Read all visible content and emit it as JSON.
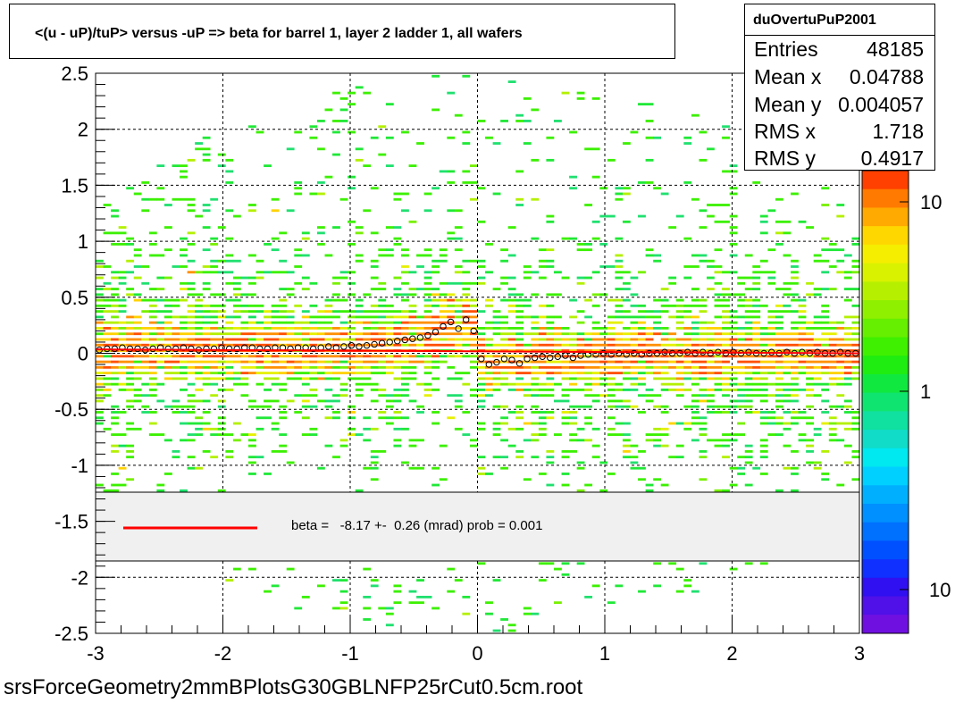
{
  "title": "<(u - uP)/tuP> versus  -uP => beta for barrel 1, layer 2 ladder 1, all wafers",
  "footer": "srsForceGeometry2mmBPlotsG30GBLNFP25rCut0.5cm.root",
  "stats": {
    "name": "duOvertuPuP2001",
    "rows": [
      {
        "label": "Entries",
        "value": "48185"
      },
      {
        "label": "Mean x",
        "value": "0.04788"
      },
      {
        "label": "Mean y",
        "value": "0.004057"
      },
      {
        "label": "RMS x",
        "value": "1.718"
      },
      {
        "label": "RMS y",
        "value": "0.4917"
      }
    ]
  },
  "fit_legend": {
    "text": "beta =   -8.17 +-  0.26 (mrad) prob = 0.001",
    "line_color": "#ff0000"
  },
  "colorbar": {
    "labels": [
      "10",
      "1",
      "10"
    ]
  },
  "chart_data": {
    "type": "heatmap",
    "title": "<(u - uP)/tuP> versus  -uP => beta for barrel 1, layer 2 ladder 1, all wafers",
    "xlim": [
      -3,
      3
    ],
    "ylim": [
      -2.5,
      2.5
    ],
    "x_ticks": [
      -3,
      -2,
      -1,
      0,
      1,
      2,
      3
    ],
    "y_ticks": [
      -2.5,
      -2,
      -1.5,
      -1,
      -0.5,
      0,
      0.5,
      1,
      1.5,
      2,
      2.5
    ],
    "grid": true,
    "profile_points": {
      "x": [
        -2.97,
        -2.91,
        -2.85,
        -2.79,
        -2.73,
        -2.67,
        -2.61,
        -2.55,
        -2.49,
        -2.43,
        -2.37,
        -2.31,
        -2.25,
        -2.19,
        -2.13,
        -2.07,
        -2.01,
        -1.95,
        -1.89,
        -1.83,
        -1.77,
        -1.71,
        -1.65,
        -1.59,
        -1.53,
        -1.47,
        -1.41,
        -1.35,
        -1.29,
        -1.23,
        -1.17,
        -1.11,
        -1.05,
        -0.99,
        -0.93,
        -0.87,
        -0.81,
        -0.75,
        -0.69,
        -0.63,
        -0.57,
        -0.51,
        -0.45,
        -0.39,
        -0.33,
        -0.27,
        -0.21,
        -0.15,
        -0.09,
        -0.03,
        0.03,
        0.09,
        0.15,
        0.21,
        0.27,
        0.33,
        0.39,
        0.45,
        0.51,
        0.57,
        0.63,
        0.69,
        0.75,
        0.81,
        0.87,
        0.93,
        0.99,
        1.05,
        1.11,
        1.17,
        1.23,
        1.29,
        1.35,
        1.41,
        1.47,
        1.53,
        1.59,
        1.65,
        1.71,
        1.77,
        1.83,
        1.89,
        1.95,
        2.01,
        2.07,
        2.13,
        2.19,
        2.25,
        2.31,
        2.37,
        2.43,
        2.49,
        2.55,
        2.61,
        2.67,
        2.73,
        2.79,
        2.85,
        2.91,
        2.97
      ],
      "y": [
        0.03,
        0.04,
        0.04,
        0.05,
        0.04,
        0.04,
        0.03,
        0.04,
        0.05,
        0.04,
        0.04,
        0.05,
        0.04,
        0.03,
        0.04,
        0.04,
        0.05,
        0.04,
        0.04,
        0.05,
        0.05,
        0.04,
        0.04,
        0.05,
        0.05,
        0.04,
        0.05,
        0.05,
        0.04,
        0.05,
        0.06,
        0.05,
        0.06,
        0.07,
        0.06,
        0.07,
        0.08,
        0.09,
        0.1,
        0.11,
        0.12,
        0.13,
        0.14,
        0.16,
        0.19,
        0.24,
        0.28,
        0.22,
        0.3,
        0.2,
        -0.05,
        -0.1,
        -0.08,
        -0.05,
        -0.06,
        -0.09,
        -0.05,
        -0.04,
        -0.03,
        -0.04,
        -0.03,
        -0.02,
        -0.04,
        -0.02,
        -0.01,
        -0.01,
        0.0,
        -0.01,
        0.0,
        -0.01,
        0.0,
        -0.01,
        0.0,
        0.0,
        0.01,
        0.0,
        0.0,
        0.01,
        0.0,
        0.01,
        0.0,
        0.01,
        0.0,
        0.01,
        0.0,
        0.01,
        0.0,
        0.0,
        0.01,
        0.0,
        0.01,
        0.0,
        0.01,
        0.0,
        0.01,
        0.0,
        0.0,
        0.01,
        0.0,
        0.0
      ]
    },
    "fit_line": {
      "x": [
        -3,
        3
      ],
      "y": [
        0.035,
        0.0
      ]
    }
  }
}
